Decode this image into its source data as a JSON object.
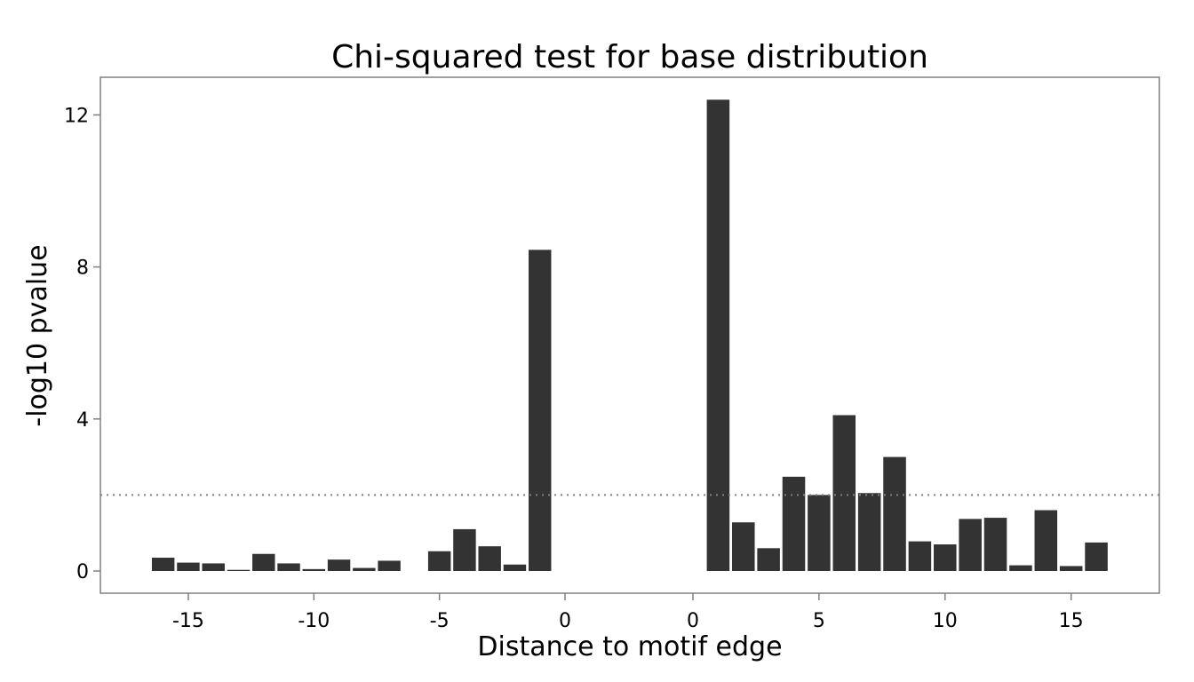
{
  "chart_data": {
    "type": "bar",
    "title": "Chi-squared test for base distribution",
    "xlabel": "Distance to motif edge",
    "ylabel": "-log10 pvalue",
    "ylim": [
      0,
      13
    ],
    "grid": false,
    "legend": "none",
    "bar_color": "#333333",
    "threshold_line": {
      "y": 2,
      "style": "dotted",
      "color": "#808080"
    },
    "left_segment": {
      "x": [
        -16,
        -15,
        -14,
        -13,
        -12,
        -11,
        -10,
        -9,
        -8,
        -7,
        -6,
        -5,
        -4,
        -3,
        -2,
        -1
      ],
      "values": [
        0.35,
        0.22,
        0.2,
        0.03,
        0.45,
        0.2,
        0.05,
        0.3,
        0.08,
        0.27,
        0,
        0.52,
        1.1,
        0.65,
        0.17,
        8.45
      ],
      "xlim": [
        -18.5,
        0
      ],
      "ticks": [
        -15,
        -10,
        -5,
        0
      ],
      "tick_labels": [
        "-15",
        "-10",
        "-5",
        "0"
      ]
    },
    "right_segment": {
      "x": [
        1,
        2,
        3,
        4,
        5,
        6,
        7,
        8,
        9,
        10,
        11,
        12,
        13,
        14,
        15,
        16
      ],
      "values": [
        12.4,
        1.28,
        0.6,
        2.48,
        2.0,
        4.1,
        2.05,
        3.0,
        0.78,
        0.7,
        1.37,
        1.4,
        0.15,
        1.6,
        0.13,
        0.75
      ],
      "xlim": [
        0,
        18.5
      ],
      "ticks": [
        0,
        5,
        10,
        15
      ],
      "tick_labels": [
        "0",
        "5",
        "10",
        "15"
      ]
    },
    "y_ticks": [
      0,
      4,
      8,
      12
    ],
    "y_tick_labels": [
      "0",
      "4",
      "8",
      "12"
    ]
  }
}
